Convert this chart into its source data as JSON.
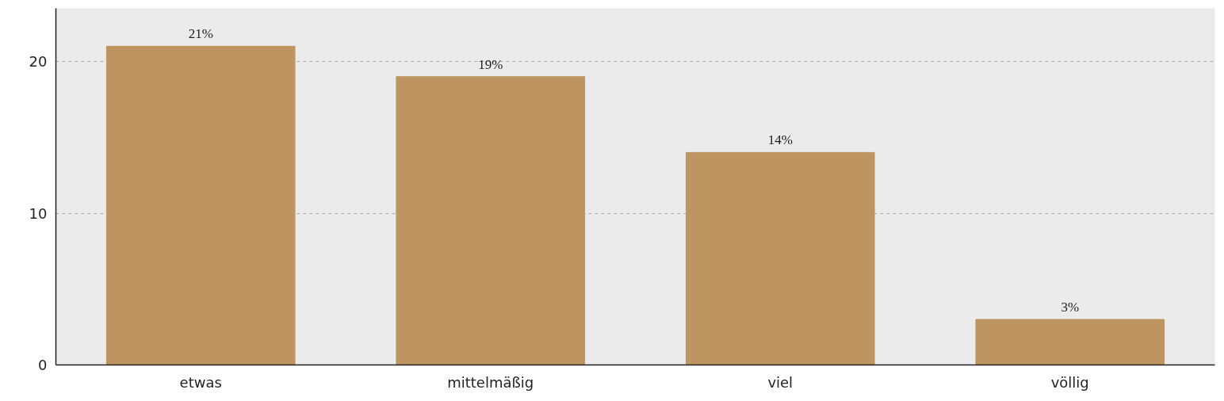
{
  "chart_data": {
    "type": "bar",
    "categories": [
      "etwas",
      "mittelmäßig",
      "viel",
      "völlig"
    ],
    "values": [
      21,
      19,
      14,
      3
    ],
    "value_labels": [
      "21%",
      "19%",
      "14%",
      "3%"
    ],
    "color": "#be9560",
    "ylim": [
      0,
      23.5
    ],
    "yticks": [
      0,
      10,
      20
    ],
    "grid": "y"
  }
}
